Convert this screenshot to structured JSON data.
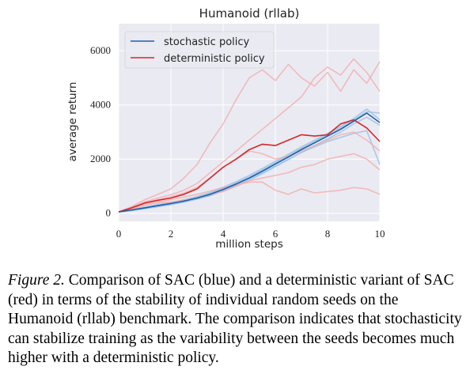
{
  "figure_caption": {
    "label": "Figure 2.",
    "text": "Comparison of SAC (blue) and a deterministic variant of SAC (red) in terms of the stability of individual random seeds on the Humanoid (rllab) benchmark. The comparison indicates that stochasticity can stabilize training as the variability between the seeds becomes much higher with a deterministic policy."
  },
  "colors": {
    "stochastic": "#1f5fa8",
    "stochastic_seed": "#9ec3e6",
    "deterministic": "#d62728",
    "deterministic_seed": "#f2a9a9",
    "plot_background": "#eaeaf2"
  },
  "chart_data": {
    "type": "line",
    "title": "Humanoid (rllab)",
    "xlabel": "million steps",
    "ylabel": "average return",
    "xlim": [
      0,
      10
    ],
    "ylim": [
      -300,
      7000
    ],
    "x_ticks": [
      0,
      2,
      4,
      6,
      8,
      10
    ],
    "y_ticks": [
      0,
      2000,
      4000,
      6000
    ],
    "grid": true,
    "legend_position": "top-left",
    "series": [
      {
        "name": "stochastic policy",
        "role": "mean",
        "color": "#1f5fa8",
        "x": [
          0,
          0.5,
          1,
          1.5,
          2,
          2.5,
          3,
          3.5,
          4,
          4.5,
          5,
          5.5,
          6,
          6.5,
          7,
          7.5,
          8,
          8.5,
          9,
          9.5,
          10
        ],
        "y": [
          50,
          120,
          200,
          280,
          360,
          450,
          560,
          700,
          880,
          1080,
          1300,
          1550,
          1820,
          2080,
          2350,
          2600,
          2850,
          3100,
          3400,
          3700,
          3350
        ]
      },
      {
        "name": "deterministic policy",
        "role": "mean",
        "color": "#d62728",
        "x": [
          0,
          0.5,
          1,
          1.5,
          2,
          2.5,
          3,
          3.5,
          4,
          4.5,
          5,
          5.5,
          6,
          6.5,
          7,
          7.5,
          8,
          8.5,
          9,
          9.5,
          10
        ],
        "y": [
          50,
          200,
          380,
          480,
          560,
          700,
          900,
          1300,
          1700,
          2000,
          2350,
          2550,
          2500,
          2700,
          2900,
          2850,
          2900,
          3300,
          3450,
          3150,
          2650
        ]
      }
    ],
    "seed_series": [
      {
        "group": "stochastic policy",
        "x": [
          0,
          0.5,
          1,
          1.5,
          2,
          2.5,
          3,
          3.5,
          4,
          4.5,
          5,
          5.5,
          6,
          6.5,
          7,
          7.5,
          8,
          8.5,
          9,
          9.5,
          10
        ],
        "y": [
          40,
          100,
          170,
          240,
          320,
          410,
          520,
          650,
          820,
          1010,
          1220,
          1460,
          1720,
          1980,
          2250,
          2500,
          2750,
          3000,
          3300,
          3550,
          3250
        ]
      },
      {
        "group": "stochastic policy",
        "x": [
          0,
          0.5,
          1,
          1.5,
          2,
          2.5,
          3,
          3.5,
          4,
          4.5,
          5,
          5.5,
          6,
          6.5,
          7,
          7.5,
          8,
          8.5,
          9,
          9.5,
          10
        ],
        "y": [
          60,
          140,
          230,
          320,
          400,
          500,
          620,
          770,
          960,
          1170,
          1400,
          1650,
          1920,
          2180,
          2450,
          2700,
          2950,
          3200,
          3500,
          3850,
          3450
        ]
      },
      {
        "group": "stochastic policy",
        "x": [
          0,
          0.5,
          1,
          1.5,
          2,
          2.5,
          3,
          3.5,
          4,
          4.5,
          5,
          5.5,
          6,
          6.5,
          7,
          7.5,
          8,
          8.5,
          9,
          9.5,
          10
        ],
        "y": [
          50,
          110,
          190,
          260,
          340,
          430,
          540,
          680,
          850,
          1050,
          1280,
          1500,
          1750,
          2000,
          2250,
          2450,
          2650,
          2800,
          2950,
          3050,
          1800
        ]
      },
      {
        "group": "stochastic policy",
        "x": [
          0,
          0.5,
          1,
          1.5,
          2,
          2.5,
          3,
          3.5,
          4,
          4.5,
          5,
          5.5,
          6,
          6.5,
          7,
          7.5,
          8,
          8.5,
          9,
          9.5,
          10
        ],
        "y": [
          50,
          130,
          210,
          300,
          380,
          470,
          590,
          740,
          920,
          1120,
          1340,
          1600,
          1870,
          2130,
          2400,
          2650,
          2900,
          3150,
          3450,
          3750,
          3700
        ]
      },
      {
        "group": "deterministic policy",
        "x": [
          0,
          0.5,
          1,
          1.5,
          2,
          2.5,
          3,
          3.5,
          4,
          4.5,
          5,
          5.5,
          6,
          6.5,
          7,
          7.5,
          8,
          8.5,
          9,
          9.5,
          10
        ],
        "y": [
          50,
          250,
          500,
          700,
          900,
          1300,
          1800,
          2600,
          3300,
          4200,
          5000,
          5300,
          4900,
          5500,
          5000,
          4700,
          5200,
          4500,
          5300,
          4800,
          5600
        ]
      },
      {
        "group": "deterministic policy",
        "x": [
          0,
          0.5,
          1,
          1.5,
          2,
          2.5,
          3,
          3.5,
          4,
          4.5,
          5,
          5.5,
          6,
          6.5,
          7,
          7.5,
          8,
          8.5,
          9,
          9.5,
          10
        ],
        "y": [
          50,
          220,
          420,
          560,
          680,
          850,
          1100,
          1500,
          1900,
          2300,
          2700,
          3100,
          3500,
          3900,
          4300,
          5000,
          5400,
          5100,
          5700,
          5200,
          4500
        ]
      },
      {
        "group": "deterministic policy",
        "x": [
          0,
          0.5,
          1,
          1.5,
          2,
          2.5,
          3,
          3.5,
          4,
          4.5,
          5,
          5.5,
          6,
          6.5,
          7,
          7.5,
          8,
          8.5,
          9,
          9.5,
          10
        ],
        "y": [
          50,
          180,
          330,
          420,
          500,
          600,
          700,
          820,
          950,
          1050,
          1150,
          1150,
          850,
          700,
          900,
          750,
          800,
          850,
          950,
          900,
          700
        ]
      },
      {
        "group": "deterministic policy",
        "x": [
          0,
          0.5,
          1,
          1.5,
          2,
          2.5,
          3,
          3.5,
          4,
          4.5,
          5,
          5.5,
          6,
          6.5,
          7,
          7.5,
          8,
          8.5,
          9,
          9.5,
          10
        ],
        "y": [
          50,
          200,
          380,
          500,
          600,
          750,
          950,
          1300,
          1700,
          2000,
          2300,
          2200,
          2000,
          2100,
          2300,
          2500,
          2700,
          2900,
          3000,
          2700,
          2300
        ]
      },
      {
        "group": "deterministic policy",
        "x": [
          0,
          0.5,
          1,
          1.5,
          2,
          2.5,
          3,
          3.5,
          4,
          4.5,
          5,
          5.5,
          6,
          6.5,
          7,
          7.5,
          8,
          8.5,
          9,
          9.5,
          10
        ],
        "y": [
          50,
          160,
          300,
          380,
          420,
          480,
          560,
          700,
          800,
          1000,
          1200,
          1300,
          1400,
          1500,
          1700,
          1800,
          2000,
          2100,
          2200,
          2000,
          1600
        ]
      }
    ]
  }
}
